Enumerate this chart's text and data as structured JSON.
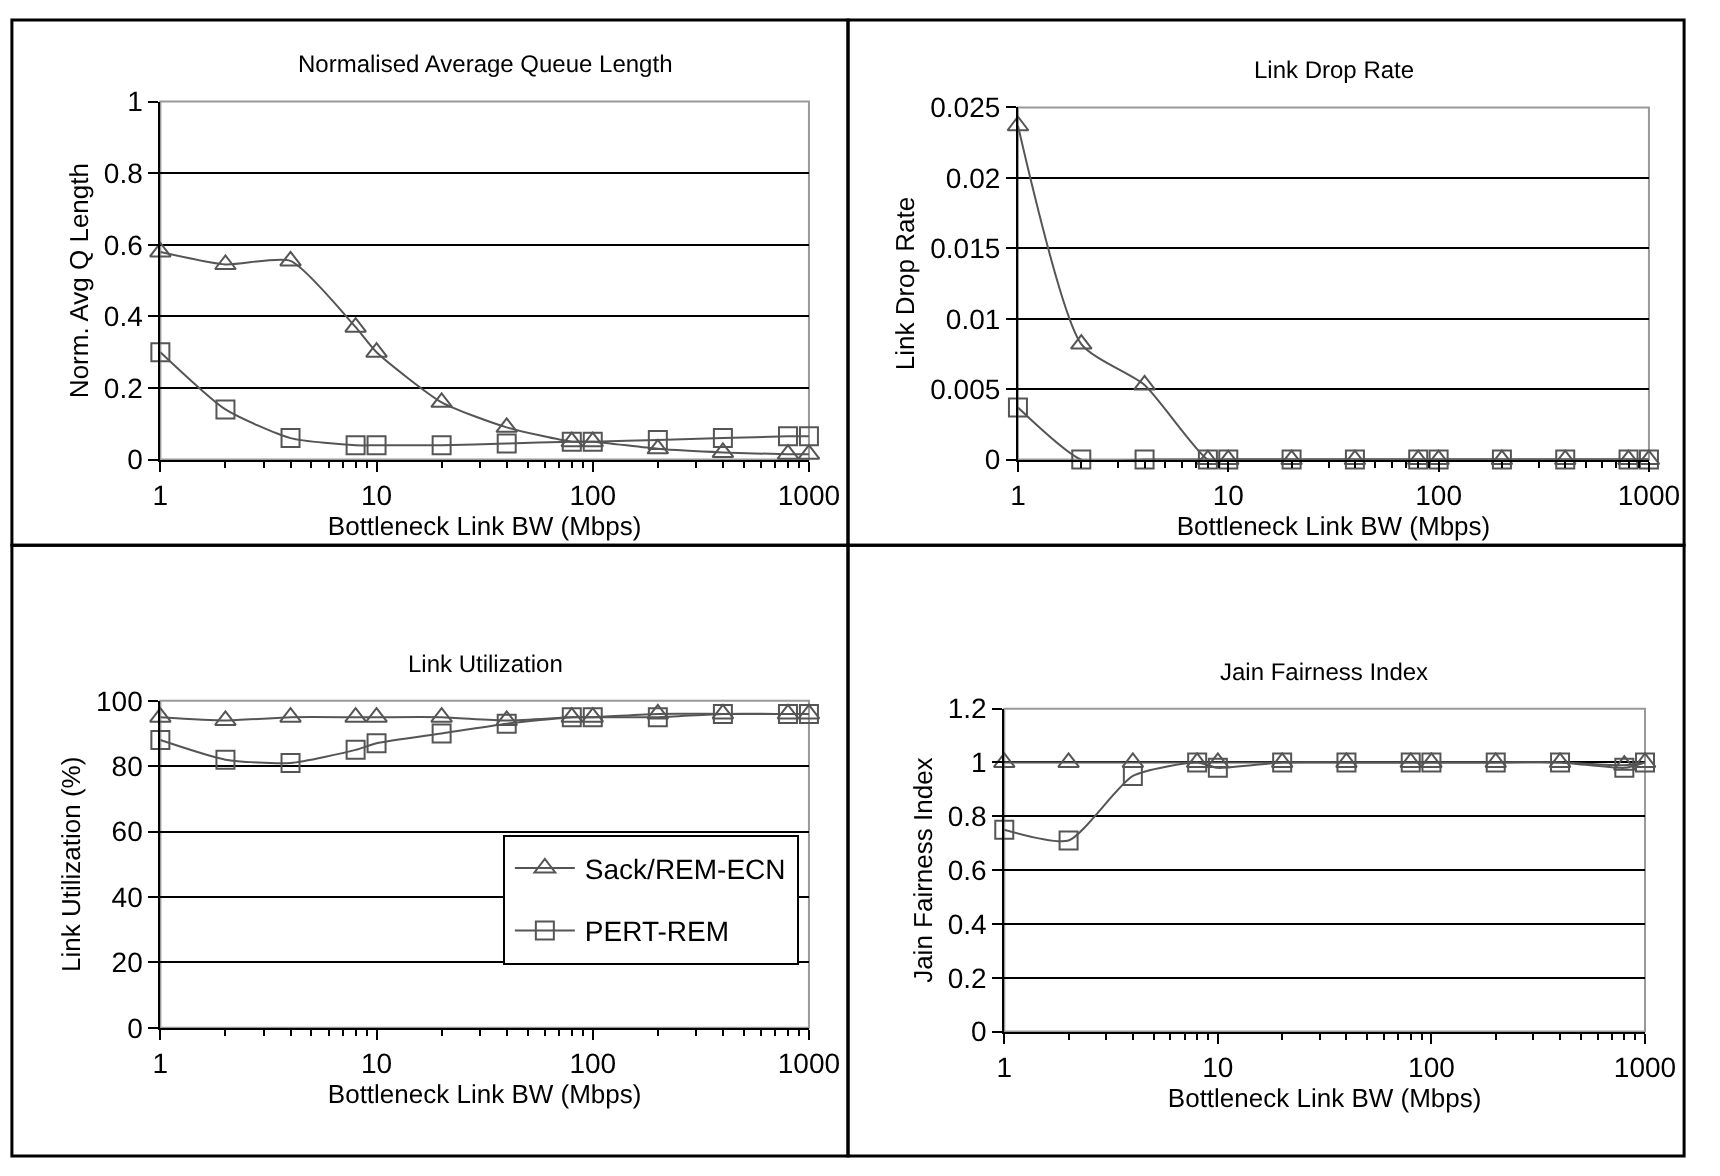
{
  "chart_data": [
    {
      "type": "line",
      "title": "Normalised Average Queue Length",
      "xlabel": "Bottleneck Link BW (Mbps)",
      "ylabel": "Norm. Avg Q Length",
      "log": "x",
      "x": [
        1,
        2,
        4,
        8,
        10,
        20,
        40,
        80,
        100,
        200,
        400,
        800,
        1000
      ],
      "xlim": [
        1,
        1000
      ],
      "xticks": [
        1,
        10,
        100,
        1000
      ],
      "ylim": [
        0,
        1
      ],
      "yticks": [
        0,
        0.2,
        0.4,
        0.6,
        0.8,
        1
      ],
      "grid": "y",
      "legend": false,
      "series": [
        {
          "color": "#555555",
          "marker": "triangle",
          "values": [
            0.58,
            0.545,
            0.555,
            0.37,
            0.3,
            0.16,
            0.09,
            0.05,
            0.05,
            0.03,
            0.02,
            0.015,
            0.015
          ]
        },
        {
          "color": "#555555",
          "marker": "square",
          "values": [
            0.3,
            0.14,
            0.06,
            0.04,
            0.04,
            0.04,
            0.045,
            0.05,
            0.05,
            0.055,
            0.06,
            0.065,
            0.065
          ]
        }
      ]
    },
    {
      "type": "line",
      "title": "Link Drop Rate",
      "xlabel": "Bottleneck Link BW (Mbps)",
      "ylabel": "Link Drop Rate",
      "log": "x",
      "x": [
        1,
        2,
        4,
        8,
        10,
        20,
        40,
        80,
        100,
        200,
        400,
        800,
        1000
      ],
      "xlim": [
        1,
        1000
      ],
      "xticks": [
        1,
        10,
        100,
        1000
      ],
      "ylim": [
        0,
        0.025
      ],
      "yticks": [
        0,
        0.005,
        0.01,
        0.015,
        0.02,
        0.025
      ],
      "grid": "y",
      "legend": false,
      "series": [
        {
          "color": "#555555",
          "marker": "triangle",
          "values": [
            0.0237,
            0.0082,
            0.0053,
            0,
            0,
            0,
            0,
            0,
            0,
            0,
            0,
            0,
            0
          ]
        },
        {
          "color": "#555555",
          "marker": "square",
          "values": [
            0.0037,
            0,
            0,
            0,
            0,
            0,
            0,
            0,
            0,
            0,
            0,
            0,
            0
          ]
        }
      ]
    },
    {
      "type": "line",
      "title": "Link Utilization",
      "xlabel": "Bottleneck Link BW (Mbps)",
      "ylabel": "Link Utilization (%)",
      "log": "x",
      "x": [
        1,
        2,
        4,
        8,
        10,
        20,
        40,
        80,
        100,
        200,
        400,
        800,
        1000
      ],
      "xlim": [
        1,
        1000
      ],
      "xticks": [
        1,
        10,
        100,
        1000
      ],
      "ylim": [
        0,
        100
      ],
      "yticks": [
        0,
        20,
        40,
        60,
        80,
        100
      ],
      "grid": "y",
      "legend": "bottom right",
      "series": [
        {
          "name": "Sack/REM-ECN",
          "color": "#555555",
          "marker": "triangle",
          "values": [
            95,
            94,
            95,
            95,
            95,
            95,
            94,
            95,
            95,
            96,
            96,
            96,
            96
          ]
        },
        {
          "name": "PERT-REM",
          "color": "#555555",
          "marker": "square",
          "values": [
            88,
            82,
            81,
            85,
            87,
            90,
            93,
            95,
            95,
            95,
            96,
            96,
            96
          ]
        }
      ]
    },
    {
      "type": "line",
      "title": "Jain Fairness Index",
      "xlabel": "Bottleneck Link BW (Mbps)",
      "ylabel": "Jain Fairness Index",
      "log": "x",
      "x": [
        1,
        2,
        4,
        8,
        10,
        20,
        40,
        80,
        100,
        200,
        400,
        800,
        1000
      ],
      "xlim": [
        1,
        1000
      ],
      "xticks": [
        1,
        10,
        100,
        1000
      ],
      "ylim": [
        0,
        1.2
      ],
      "yticks": [
        0,
        0.2,
        0.4,
        0.6,
        0.8,
        1,
        1.2
      ],
      "grid": "y",
      "legend": false,
      "series": [
        {
          "color": "#555555",
          "marker": "triangle",
          "values": [
            1,
            1,
            1,
            1,
            1,
            1,
            1,
            1,
            1,
            1,
            1,
            0.99,
            1
          ]
        },
        {
          "color": "#555555",
          "marker": "square",
          "values": [
            0.75,
            0.71,
            0.95,
            1,
            0.98,
            1,
            1,
            1,
            1,
            1,
            1,
            0.98,
            1
          ]
        }
      ]
    }
  ]
}
